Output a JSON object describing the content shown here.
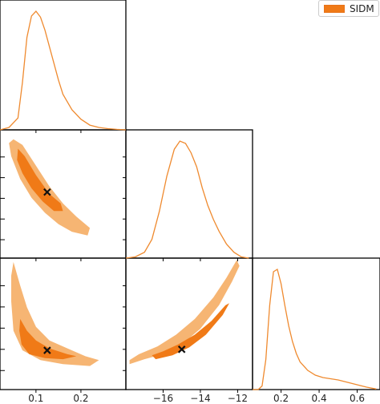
{
  "legend": {
    "label": "SIDM"
  },
  "colors": {
    "outer": "#f6b573",
    "inner": "#f07a17",
    "line": "#ef8a2f",
    "marker": "#111111"
  },
  "chart_data": {
    "type": "corner",
    "parameters": [
      {
        "range": [
          0.02,
          0.3
        ],
        "ticks": [
          {
            "value": 0.1,
            "label": "0.1"
          },
          {
            "value": 0.2,
            "label": "0.2"
          }
        ]
      },
      {
        "range": [
          -18,
          -11.2
        ],
        "ticks": [
          {
            "value": -16,
            "label": "−16"
          },
          {
            "value": -14,
            "label": "−14"
          },
          {
            "value": -12,
            "label": "−12"
          }
        ]
      },
      {
        "range": [
          0.05,
          0.72
        ],
        "ticks": [
          {
            "value": 0.2,
            "label": "0.2"
          },
          {
            "value": 0.4,
            "label": "0.4"
          },
          {
            "value": 0.6,
            "label": "0.6"
          }
        ]
      }
    ],
    "marginals": [
      {
        "param": 0,
        "x": [
          0.02,
          0.04,
          0.06,
          0.07,
          0.08,
          0.09,
          0.1,
          0.11,
          0.12,
          0.13,
          0.14,
          0.15,
          0.16,
          0.18,
          0.2,
          0.22,
          0.24,
          0.26,
          0.28,
          0.3
        ],
        "density": [
          0,
          0.02,
          0.1,
          0.4,
          0.78,
          0.96,
          1.0,
          0.95,
          0.84,
          0.7,
          0.56,
          0.42,
          0.3,
          0.17,
          0.09,
          0.04,
          0.02,
          0.01,
          0.004,
          0
        ]
      },
      {
        "param": 1,
        "x": [
          -18,
          -17.5,
          -17,
          -16.6,
          -16.2,
          -15.8,
          -15.4,
          -15.1,
          -14.8,
          -14.5,
          -14.2,
          -13.9,
          -13.6,
          -13.3,
          -13,
          -12.6,
          -12.2,
          -11.8,
          -11.4
        ],
        "density": [
          0,
          0.01,
          0.05,
          0.16,
          0.4,
          0.7,
          0.93,
          1.0,
          0.98,
          0.9,
          0.78,
          0.6,
          0.45,
          0.33,
          0.23,
          0.12,
          0.05,
          0.01,
          0
        ]
      },
      {
        "param": 2,
        "x": [
          0.05,
          0.08,
          0.1,
          0.12,
          0.14,
          0.16,
          0.18,
          0.2,
          0.22,
          0.24,
          0.26,
          0.28,
          0.3,
          0.34,
          0.38,
          0.42,
          0.46,
          0.5,
          0.55,
          0.6,
          0.65,
          0.7
        ],
        "density": [
          0,
          0,
          0.03,
          0.25,
          0.7,
          0.98,
          1.0,
          0.88,
          0.7,
          0.53,
          0.4,
          0.3,
          0.23,
          0.16,
          0.12,
          0.1,
          0.09,
          0.08,
          0.06,
          0.04,
          0.02,
          0.005
        ]
      }
    ],
    "contours_2d": [
      {
        "x_param": 0,
        "y_param": 1,
        "outer": [
          [
            0.05,
            -11.7
          ],
          [
            0.07,
            -12.0
          ],
          [
            0.1,
            -13.1
          ],
          [
            0.13,
            -14.2
          ],
          [
            0.16,
            -15.1
          ],
          [
            0.19,
            -15.8
          ],
          [
            0.22,
            -16.4
          ],
          [
            0.215,
            -16.8
          ],
          [
            0.18,
            -16.6
          ],
          [
            0.15,
            -16.2
          ],
          [
            0.12,
            -15.6
          ],
          [
            0.09,
            -14.8
          ],
          [
            0.065,
            -13.8
          ],
          [
            0.045,
            -12.6
          ],
          [
            0.04,
            -11.9
          ]
        ],
        "inner": [
          [
            0.06,
            -12.2
          ],
          [
            0.075,
            -12.6
          ],
          [
            0.1,
            -13.6
          ],
          [
            0.13,
            -14.6
          ],
          [
            0.155,
            -15.1
          ],
          [
            0.16,
            -15.5
          ],
          [
            0.14,
            -15.5
          ],
          [
            0.115,
            -15.0
          ],
          [
            0.09,
            -14.3
          ],
          [
            0.07,
            -13.5
          ],
          [
            0.058,
            -12.8
          ]
        ],
        "point": [
          0.125,
          -14.5
        ]
      },
      {
        "x_param": 0,
        "y_param": 2,
        "outer": [
          [
            0.05,
            0.7
          ],
          [
            0.065,
            0.58
          ],
          [
            0.08,
            0.47
          ],
          [
            0.1,
            0.37
          ],
          [
            0.13,
            0.3
          ],
          [
            0.17,
            0.26
          ],
          [
            0.21,
            0.22
          ],
          [
            0.24,
            0.2
          ],
          [
            0.22,
            0.17
          ],
          [
            0.16,
            0.18
          ],
          [
            0.11,
            0.2
          ],
          [
            0.07,
            0.25
          ],
          [
            0.05,
            0.35
          ],
          [
            0.045,
            0.5
          ],
          [
            0.045,
            0.63
          ]
        ],
        "inner": [
          [
            0.065,
            0.41
          ],
          [
            0.08,
            0.35
          ],
          [
            0.1,
            0.3
          ],
          [
            0.13,
            0.26
          ],
          [
            0.17,
            0.23
          ],
          [
            0.19,
            0.22
          ],
          [
            0.16,
            0.205
          ],
          [
            0.12,
            0.21
          ],
          [
            0.085,
            0.23
          ],
          [
            0.068,
            0.28
          ],
          [
            0.063,
            0.35
          ]
        ],
        "point": [
          0.125,
          0.25
        ]
      },
      {
        "x_param": 1,
        "y_param": 2,
        "outer": [
          [
            -17.8,
            0.18
          ],
          [
            -17.0,
            0.205
          ],
          [
            -16.0,
            0.23
          ],
          [
            -15.0,
            0.28
          ],
          [
            -14.0,
            0.36
          ],
          [
            -13.0,
            0.48
          ],
          [
            -12.3,
            0.6
          ],
          [
            -11.9,
            0.68
          ],
          [
            -12.05,
            0.71
          ],
          [
            -12.6,
            0.62
          ],
          [
            -13.3,
            0.52
          ],
          [
            -14.3,
            0.41
          ],
          [
            -15.3,
            0.33
          ],
          [
            -16.3,
            0.27
          ],
          [
            -17.3,
            0.23
          ],
          [
            -17.8,
            0.2
          ]
        ],
        "inner": [
          [
            -16.4,
            0.205
          ],
          [
            -15.5,
            0.225
          ],
          [
            -14.6,
            0.265
          ],
          [
            -13.7,
            0.33
          ],
          [
            -12.8,
            0.43
          ],
          [
            -12.45,
            0.49
          ],
          [
            -12.65,
            0.48
          ],
          [
            -13.4,
            0.4
          ],
          [
            -14.3,
            0.33
          ],
          [
            -15.2,
            0.28
          ],
          [
            -16.0,
            0.245
          ],
          [
            -16.6,
            0.225
          ]
        ],
        "point": [
          -15.0,
          0.255
        ]
      }
    ]
  }
}
